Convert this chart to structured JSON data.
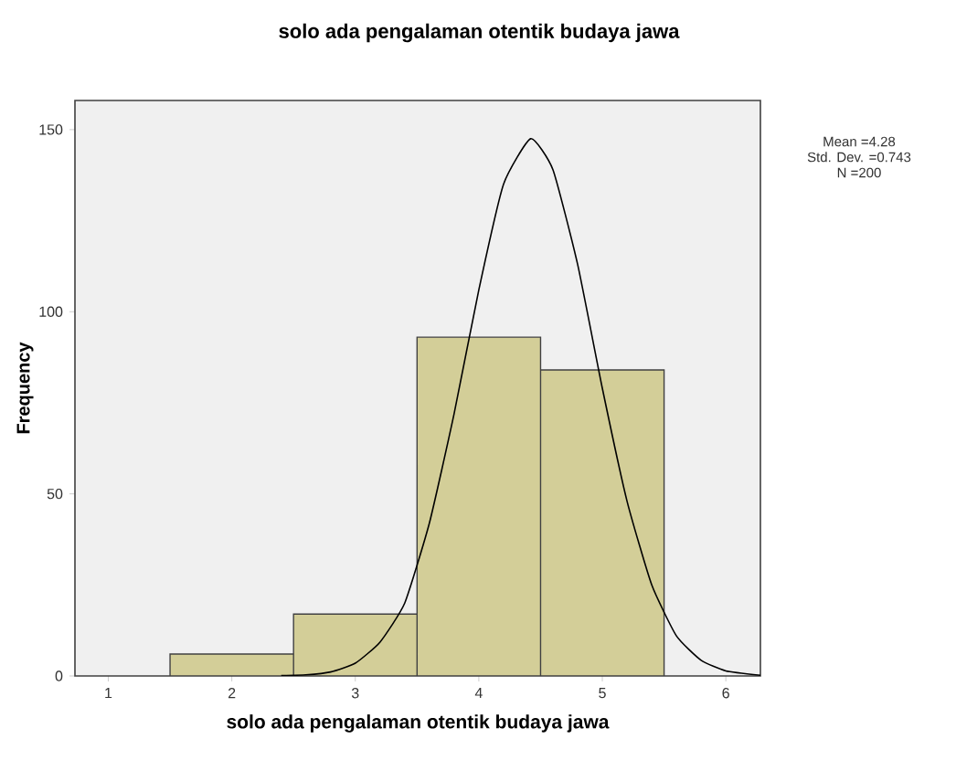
{
  "chart_data": {
    "type": "histogram",
    "title": "solo ada pengalaman otentik budaya jawa",
    "xlabel": "solo ada pengalaman otentik budaya jawa",
    "ylabel": "Frequency",
    "bins": [
      1.5,
      2.5,
      3.5,
      4.5,
      5.5
    ],
    "values": [
      6,
      17,
      93,
      84
    ],
    "color": "#d3ce98",
    "series": [
      {
        "type": "line",
        "color": "#000000",
        "x": [
          2.4,
          2.6,
          2.8,
          3.0,
          3.2,
          3.4,
          3.6,
          3.8,
          4.0,
          4.2,
          4.42,
          4.6,
          4.8,
          5.0,
          5.2,
          5.4,
          5.6,
          5.8,
          6.0,
          6.28
        ],
        "values": [
          0.1,
          0.3,
          1.1,
          3.5,
          9.3,
          20,
          42,
          72,
          106,
          135,
          147.5,
          139,
          113,
          79,
          48,
          25,
          11,
          4.3,
          1.4,
          0.2
        ]
      }
    ],
    "annotations": [
      "Mean =4.28",
      "Std. Dev. =0.743",
      "N =200"
    ],
    "xlim": [
      0.73,
      6.28
    ],
    "ylim": [
      0,
      158
    ],
    "xticks": [
      1,
      2,
      3,
      4,
      5,
      6
    ],
    "yticks": [
      0,
      50,
      100,
      150
    ],
    "grid": false
  }
}
